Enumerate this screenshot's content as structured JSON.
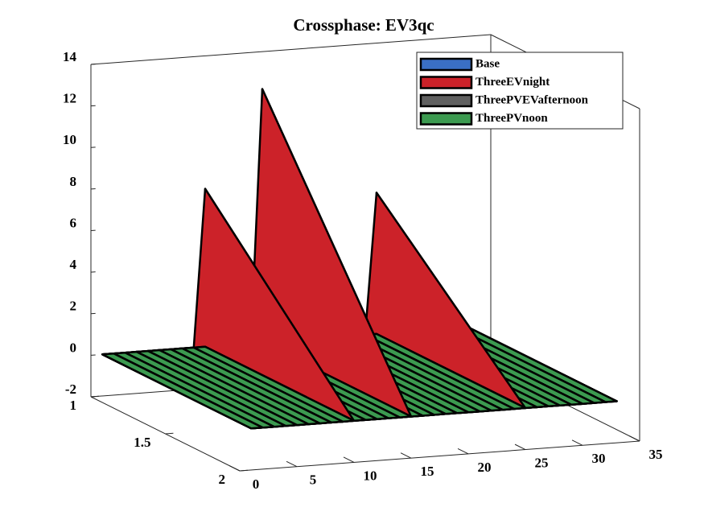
{
  "chart_data": {
    "type": "surface3d",
    "title": "Crossphase: EV3qc",
    "x": [
      1,
      2,
      3,
      4,
      5,
      6,
      7,
      8,
      9,
      10,
      11,
      12,
      13,
      14,
      15,
      16,
      17,
      18,
      19,
      20,
      21,
      22,
      23,
      24,
      25,
      26,
      27,
      28,
      29,
      30,
      31,
      32,
      33
    ],
    "series": [
      {
        "name": "Base",
        "color": "#3a6fc4",
        "values": [
          0,
          0,
          0,
          0,
          0,
          0,
          0,
          0,
          0,
          0,
          0,
          0,
          0,
          0,
          0,
          0,
          0,
          0,
          0,
          0,
          0,
          0,
          0,
          0,
          0,
          0,
          0,
          0,
          0,
          0,
          0,
          0,
          0
        ]
      },
      {
        "name": "ThreeEVnight",
        "color": "#cc2229",
        "values": [
          0,
          0,
          0,
          0,
          0,
          0,
          0,
          0,
          0,
          7.6,
          0,
          0,
          0,
          0,
          12.2,
          0,
          0,
          0,
          0,
          0,
          0,
          0,
          0,
          0,
          6.8,
          0,
          0,
          0,
          0,
          0,
          0,
          0,
          0
        ]
      },
      {
        "name": "ThreePVEVafternoon",
        "color": "#606060",
        "values": [
          0,
          0,
          0,
          0,
          0,
          0,
          0,
          0,
          0,
          0,
          0,
          0,
          0,
          0,
          0,
          0,
          0,
          0,
          0,
          -0.5,
          0,
          0,
          0,
          0,
          0,
          0,
          0,
          0,
          0,
          0,
          0,
          0,
          0
        ]
      },
      {
        "name": "ThreePVnoon",
        "color": "#3c9a50",
        "values": [
          0,
          0,
          0,
          0,
          0,
          0,
          0,
          0,
          0,
          0,
          0,
          0,
          0,
          0,
          0,
          0,
          0,
          0,
          0,
          0,
          0,
          0,
          0,
          0,
          0,
          0,
          0,
          0,
          0,
          0,
          0,
          0,
          0
        ]
      }
    ],
    "xlim": [
      0,
      35
    ],
    "xticks": [
      0,
      5,
      10,
      15,
      20,
      25,
      30,
      35
    ],
    "ylim": [
      1,
      2
    ],
    "yticks": [
      1,
      1.5,
      2
    ],
    "zlim": [
      -2,
      14
    ],
    "zticks": [
      -2,
      0,
      2,
      4,
      6,
      8,
      10,
      12,
      14
    ],
    "legend": "northeast"
  }
}
